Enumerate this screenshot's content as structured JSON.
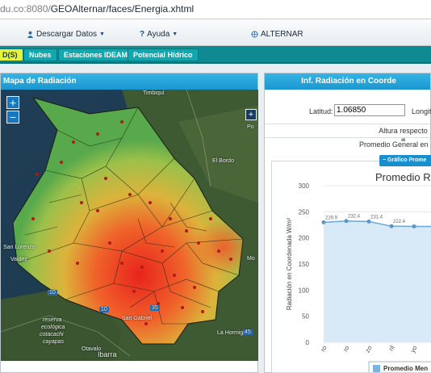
{
  "browser": {
    "url_host": "du.co:8080/",
    "url_path": "GEOAlternar/faces/Energia.xhtml"
  },
  "menubar": {
    "download_label": "Descargar Datos",
    "help_label": "Ayuda",
    "brand_label": "ALTERNAR"
  },
  "tabs": [
    {
      "label": "D(S)"
    },
    {
      "label": "Nubes"
    },
    {
      "label": "Estaciones IDEAM"
    },
    {
      "label": "Potencial Hídrico"
    }
  ],
  "map_panel": {
    "title": "Mapa de Radiación",
    "zoom_in": "+",
    "zoom_out": "−",
    "labels": {
      "timbiqui": "Timbiquí",
      "el_bordo": "El Bordo",
      "san_lorenzo": "San Lorenzo",
      "valdez": "Valdez",
      "reserva": "reserva",
      "ecologica": "ecológica",
      "cotacachi": "cotacachi",
      "cayapas": "cayapas",
      "san_gabriel": "San Gabriel",
      "ibarra": "Ibarra",
      "otavalo": "Otavalo",
      "la_hormiga": "La Hormiga",
      "po": "Po",
      "mo": "Mo",
      "road_10": "10",
      "road_10b": "10",
      "road_35": "35",
      "road_45": "45"
    },
    "add_layer": "+"
  },
  "info_panel": {
    "title": "Inf. Radiación en Coorde",
    "lat_label": "Latitud:",
    "lat_value": "1.06850",
    "lon_label": "Longitu",
    "altitude_label": "Altura respecto a",
    "avg_label": "Promedio General en",
    "chart_button": "Gráfico Prome"
  },
  "chart_data": {
    "type": "area",
    "title": "Promedio R",
    "ylabel": "Radiación en Coordenada W/m²",
    "ylim": [
      0,
      300
    ],
    "yticks": [
      0,
      50,
      100,
      150,
      200,
      250,
      300
    ],
    "categories": [
      "ro",
      "ro",
      "zo",
      "ril",
      "yo",
      "io"
    ],
    "series": [
      {
        "name": "Promedio Men",
        "values": [
          229.9,
          232.4,
          231.4,
          222.4,
          222,
          222
        ]
      }
    ],
    "data_labels": [
      "229.9",
      "232.4",
      "231.4",
      "222.4"
    ],
    "legend_position": "center",
    "colors": {
      "line": "#6aa6d7",
      "fill": "#d8e9f7",
      "legend": "#7cb4e0"
    }
  },
  "colors": {
    "header_blue": "#1a97cf",
    "tab_teal": "#10a8b0",
    "tab_active": "#e7f23a"
  }
}
